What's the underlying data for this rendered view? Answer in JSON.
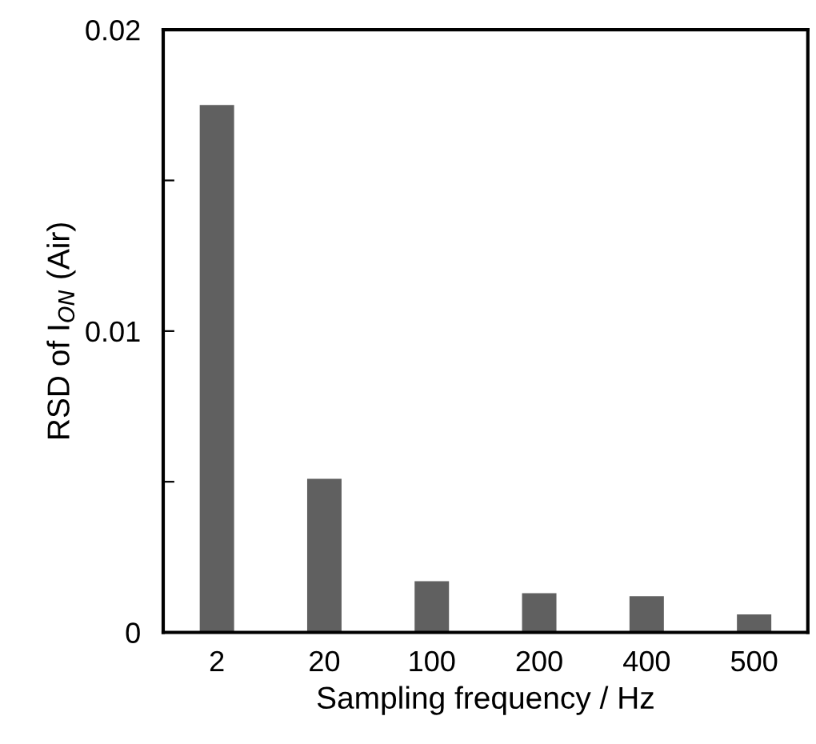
{
  "chart_data": {
    "type": "bar",
    "xlabel": "Sampling frequency / Hz",
    "ylabel": "RSD of I$_{ON}$ (Air)",
    "categories": [
      "2",
      "20",
      "100",
      "200",
      "400",
      "500"
    ],
    "values": [
      0.0175,
      0.0051,
      0.0017,
      0.0013,
      0.0012,
      0.0006
    ],
    "color": "#606060",
    "ylim": [
      0,
      0.02
    ],
    "yticks": [
      0,
      {
        "value": 0.005,
        "label": null
      },
      0.01,
      {
        "value": 0.015,
        "label": null
      },
      0.02
    ],
    "grid": false
  }
}
